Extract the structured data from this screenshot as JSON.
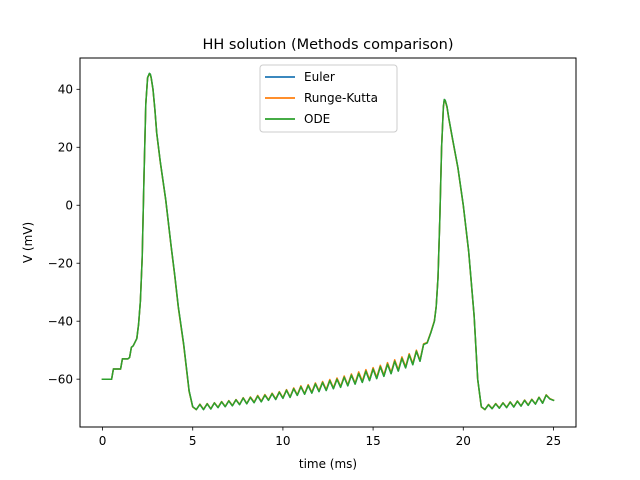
{
  "chart_data": {
    "type": "line",
    "title": "HH solution (Methods comparison)",
    "xlabel": "time (ms)",
    "ylabel": "V (mV)",
    "xlim": [
      -1.25,
      26.25
    ],
    "ylim": [
      -76.5,
      50.8
    ],
    "xticks": [
      0,
      5,
      10,
      15,
      20,
      25
    ],
    "yticks": [
      -60,
      -40,
      -20,
      0,
      20,
      40
    ],
    "grid": false,
    "legend_position": "top-center",
    "series": [
      {
        "name": "Euler",
        "color": "#1f77b4",
        "x": [
          0,
          0.5,
          0.6,
          0.9,
          1.0,
          1.1,
          1.4,
          1.5,
          1.6,
          1.7,
          1.9,
          2.0,
          2.1,
          2.2,
          2.3,
          2.4,
          2.5,
          2.6,
          2.65,
          2.7,
          2.8,
          2.9,
          3.0,
          3.2,
          3.5,
          3.8,
          4.0,
          4.2,
          4.5,
          4.8,
          5.0,
          5.2,
          5.4,
          5.6,
          5.8,
          6.0,
          6.2,
          6.4,
          6.6,
          6.8,
          7.0,
          7.2,
          7.4,
          7.6,
          7.8,
          8.0,
          8.2,
          8.4,
          8.6,
          8.8,
          9.0,
          9.2,
          9.4,
          9.6,
          9.8,
          10.0,
          10.2,
          10.4,
          10.6,
          10.8,
          11.0,
          11.2,
          11.4,
          11.6,
          11.8,
          12.0,
          12.2,
          12.4,
          12.6,
          12.8,
          13.0,
          13.2,
          13.4,
          13.6,
          13.8,
          14.0,
          14.2,
          14.4,
          14.6,
          14.8,
          15.0,
          15.2,
          15.4,
          15.6,
          15.8,
          16.0,
          16.2,
          16.4,
          16.6,
          16.8,
          17.0,
          17.2,
          17.4,
          17.6,
          17.8,
          18.0,
          18.2,
          18.4,
          18.5,
          18.6,
          18.7,
          18.8,
          18.9,
          18.95,
          19.0,
          19.1,
          19.2,
          19.4,
          19.7,
          20.0,
          20.3,
          20.6,
          20.8,
          21.0,
          21.2,
          21.4,
          21.6,
          21.8,
          22.0,
          22.2,
          22.4,
          22.6,
          22.8,
          23.0,
          23.2,
          23.4,
          23.6,
          23.8,
          24.0,
          24.2,
          24.4,
          24.6,
          24.8,
          25.0
        ],
        "y": [
          -60,
          -60,
          -56.5,
          -56.5,
          -56.5,
          -53,
          -53,
          -52.5,
          -49,
          -48.5,
          -46,
          -41,
          -33,
          -18,
          10,
          35,
          44,
          45.5,
          45.2,
          44,
          40,
          33,
          25,
          15,
          2,
          -14,
          -24,
          -35,
          -48,
          -64,
          -69.5,
          -70.5,
          -68.7,
          -70.5,
          -68.5,
          -70.3,
          -68.2,
          -69.8,
          -67.8,
          -69.5,
          -67.5,
          -69.2,
          -67.1,
          -68.8,
          -66.5,
          -68.5,
          -66.3,
          -68.1,
          -65.8,
          -67.8,
          -65.5,
          -67.3,
          -65,
          -67,
          -64.5,
          -66.6,
          -63.8,
          -66.3,
          -63.3,
          -65.6,
          -62.6,
          -65.2,
          -62.2,
          -64.8,
          -61.6,
          -64.3,
          -61.1,
          -63.9,
          -60.5,
          -63.3,
          -60,
          -62.8,
          -59.3,
          -62.3,
          -58.6,
          -61.7,
          -58,
          -61.1,
          -57.2,
          -60.5,
          -56.5,
          -59.8,
          -55.7,
          -59,
          -54.8,
          -58.1,
          -53.8,
          -57.2,
          -52.8,
          -56.1,
          -51.6,
          -55,
          -50.3,
          -53.8,
          -48,
          -47.5,
          -44,
          -40,
          -35,
          -25,
          -5,
          20,
          34,
          36.5,
          36.2,
          34,
          30,
          23,
          13,
          0,
          -16,
          -38,
          -60,
          -69.5,
          -70.5,
          -68.8,
          -70.2,
          -68.5,
          -70,
          -68.2,
          -69.8,
          -67.9,
          -69.6,
          -67.6,
          -69.3,
          -67.3,
          -69,
          -67,
          -68.6,
          -66.3,
          -68.3,
          -65.5,
          -66.8,
          -67.3
        ]
      },
      {
        "name": "Runge-Kutta",
        "color": "#ff7f0e",
        "x": [
          0,
          0.5,
          0.6,
          0.9,
          1.0,
          1.1,
          1.4,
          1.5,
          1.6,
          1.7,
          1.9,
          2.0,
          2.1,
          2.2,
          2.3,
          2.4,
          2.5,
          2.6,
          2.65,
          2.7,
          2.8,
          2.9,
          3.0,
          3.2,
          3.5,
          3.8,
          4.0,
          4.2,
          4.5,
          4.8,
          5.0,
          5.2,
          5.4,
          5.6,
          5.8,
          6.0,
          6.2,
          6.4,
          6.6,
          6.8,
          7.0,
          7.2,
          7.4,
          7.6,
          7.8,
          8.0,
          8.2,
          8.4,
          8.6,
          8.8,
          9.0,
          9.2,
          9.4,
          9.6,
          9.8,
          10.0,
          10.2,
          10.4,
          10.6,
          10.8,
          11.0,
          11.2,
          11.4,
          11.6,
          11.8,
          12.0,
          12.2,
          12.4,
          12.6,
          12.8,
          13.0,
          13.2,
          13.4,
          13.6,
          13.8,
          14.0,
          14.2,
          14.4,
          14.6,
          14.8,
          15.0,
          15.2,
          15.4,
          15.6,
          15.8,
          16.0,
          16.2,
          16.4,
          16.6,
          16.8,
          17.0,
          17.2,
          17.4,
          17.6,
          17.8,
          18.0,
          18.2,
          18.4,
          18.5,
          18.6,
          18.7,
          18.8,
          18.9,
          18.95,
          19.0,
          19.1,
          19.2,
          19.4,
          19.7,
          20.0,
          20.3,
          20.6,
          20.8,
          21.0,
          21.2,
          21.4,
          21.6,
          21.8,
          22.0,
          22.2,
          22.4,
          22.6,
          22.8,
          23.0,
          23.2,
          23.4,
          23.6,
          23.8,
          24.0,
          24.2,
          24.4,
          24.6,
          24.8,
          25.0
        ],
        "y": [
          -60,
          -60,
          -56.5,
          -56.5,
          -56.5,
          -53,
          -53,
          -52.5,
          -49,
          -48.5,
          -46,
          -41,
          -33,
          -18,
          10,
          35,
          44,
          45.3,
          45,
          43.8,
          39.8,
          32.8,
          24.8,
          14.8,
          1.8,
          -14.2,
          -24.3,
          -35.3,
          -48.4,
          -64.3,
          -69.6,
          -70.5,
          -68.6,
          -70.4,
          -68.4,
          -70.2,
          -68.1,
          -69.7,
          -67.7,
          -69.4,
          -67.4,
          -69.1,
          -67,
          -68.7,
          -66.4,
          -68.4,
          -66.1,
          -67.9,
          -65.6,
          -67.6,
          -65.3,
          -67.1,
          -64.8,
          -66.8,
          -64.3,
          -66.4,
          -63.6,
          -66.1,
          -63,
          -65.4,
          -62.3,
          -65,
          -61.9,
          -64.5,
          -61.3,
          -64,
          -60.8,
          -63.6,
          -60.1,
          -63,
          -59.6,
          -62.5,
          -58.9,
          -62,
          -58.2,
          -61.4,
          -57.5,
          -60.7,
          -56.7,
          -60.1,
          -56,
          -59.4,
          -55.2,
          -58.6,
          -54.3,
          -57.7,
          -53.3,
          -56.8,
          -52.3,
          -55.7,
          -51.2,
          -54.6,
          -50,
          -53.5,
          -47.8,
          -47.3,
          -43.8,
          -39.8,
          -34.8,
          -24.8,
          -4.8,
          20,
          34,
          36.3,
          36,
          33.8,
          29.8,
          22.8,
          12.8,
          -0.2,
          -16.2,
          -38.2,
          -60.2,
          -69.6,
          -70.5,
          -68.7,
          -70.1,
          -68.4,
          -69.9,
          -68.1,
          -69.7,
          -67.8,
          -69.5,
          -67.5,
          -69.2,
          -67.2,
          -68.9,
          -66.9,
          -68.5,
          -66.2,
          -68.2,
          -65.4,
          -66.7,
          -67.3
        ]
      },
      {
        "name": "ODE",
        "color": "#2ca02c",
        "x": [
          0,
          0.5,
          0.6,
          0.9,
          1.0,
          1.1,
          1.4,
          1.5,
          1.6,
          1.7,
          1.9,
          2.0,
          2.1,
          2.2,
          2.3,
          2.4,
          2.5,
          2.6,
          2.65,
          2.7,
          2.8,
          2.9,
          3.0,
          3.2,
          3.5,
          3.8,
          4.0,
          4.2,
          4.5,
          4.8,
          5.0,
          5.2,
          5.4,
          5.6,
          5.8,
          6.0,
          6.2,
          6.4,
          6.6,
          6.8,
          7.0,
          7.2,
          7.4,
          7.6,
          7.8,
          8.0,
          8.2,
          8.4,
          8.6,
          8.8,
          9.0,
          9.2,
          9.4,
          9.6,
          9.8,
          10.0,
          10.2,
          10.4,
          10.6,
          10.8,
          11.0,
          11.2,
          11.4,
          11.6,
          11.8,
          12.0,
          12.2,
          12.4,
          12.6,
          12.8,
          13.0,
          13.2,
          13.4,
          13.6,
          13.8,
          14.0,
          14.2,
          14.4,
          14.6,
          14.8,
          15.0,
          15.2,
          15.4,
          15.6,
          15.8,
          16.0,
          16.2,
          16.4,
          16.6,
          16.8,
          17.0,
          17.2,
          17.4,
          17.6,
          17.8,
          18.0,
          18.2,
          18.4,
          18.5,
          18.6,
          18.7,
          18.8,
          18.9,
          18.95,
          19.0,
          19.1,
          19.2,
          19.4,
          19.7,
          20.0,
          20.3,
          20.6,
          20.8,
          21.0,
          21.2,
          21.4,
          21.6,
          21.8,
          22.0,
          22.2,
          22.4,
          22.6,
          22.8,
          23.0,
          23.2,
          23.4,
          23.6,
          23.8,
          24.0,
          24.2,
          24.4,
          24.6,
          24.8,
          25.0
        ],
        "y": [
          -60,
          -60,
          -56.5,
          -56.5,
          -56.5,
          -53,
          -53,
          -52.5,
          -49,
          -48.5,
          -46,
          -41,
          -33,
          -18,
          10,
          35,
          44,
          45.5,
          45.2,
          44,
          40,
          33,
          25,
          15,
          2,
          -14,
          -24,
          -35,
          -48,
          -64,
          -69.5,
          -70.5,
          -68.7,
          -70.5,
          -68.5,
          -70.3,
          -68.2,
          -69.8,
          -67.8,
          -69.5,
          -67.5,
          -69.2,
          -67.1,
          -68.8,
          -66.5,
          -68.5,
          -66.3,
          -68.1,
          -65.8,
          -67.8,
          -65.5,
          -67.3,
          -65,
          -67,
          -64.5,
          -66.6,
          -63.8,
          -66.3,
          -63.3,
          -65.6,
          -62.6,
          -65.2,
          -62.2,
          -64.8,
          -61.6,
          -64.3,
          -61.1,
          -63.9,
          -60.5,
          -63.3,
          -60,
          -62.8,
          -59.3,
          -62.3,
          -58.6,
          -61.7,
          -58,
          -61.1,
          -57.2,
          -60.5,
          -56.5,
          -59.8,
          -55.7,
          -59,
          -54.8,
          -58.1,
          -53.8,
          -57.2,
          -52.8,
          -56.1,
          -51.6,
          -55,
          -50.3,
          -53.8,
          -48,
          -47.5,
          -44,
          -40,
          -35,
          -25,
          -5,
          20,
          34,
          36.5,
          36.2,
          34,
          30,
          23,
          13,
          0,
          -16,
          -38,
          -60,
          -69.5,
          -70.5,
          -68.8,
          -70.2,
          -68.5,
          -70,
          -68.2,
          -69.8,
          -67.9,
          -69.6,
          -67.6,
          -69.3,
          -67.3,
          -69,
          -67,
          -68.6,
          -66.3,
          -68.3,
          -65.5,
          -66.8,
          -67.3
        ]
      }
    ]
  }
}
